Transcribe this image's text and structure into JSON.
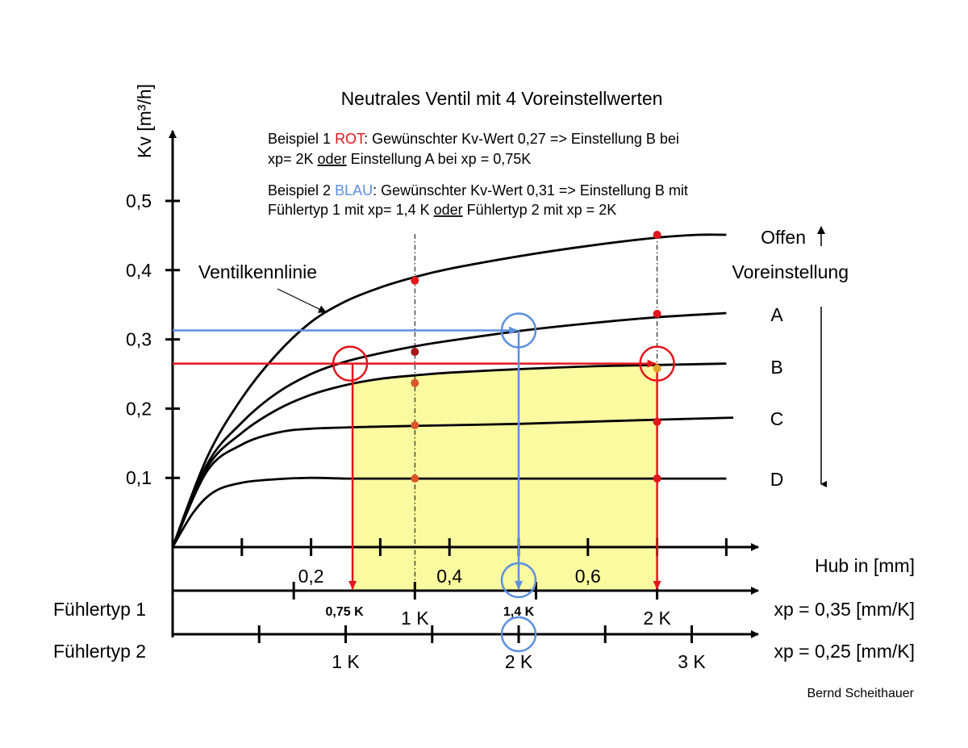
{
  "chart_data": {
    "type": "line",
    "title": "Neutrales Ventil mit 4 Voreinstellwerten",
    "ylabel": "Kv [m³/h]",
    "xlabel": "Hub in [mm]",
    "ylim": [
      0,
      0.5
    ],
    "xlim": [
      0,
      0.8
    ],
    "y_ticks": [
      0.1,
      0.2,
      0.3,
      0.4,
      0.5
    ],
    "y_tick_labels": [
      "0,1",
      "0,2",
      "0,3",
      "0,4",
      "0,5"
    ],
    "x_tick_labels": [
      {
        "x": 0.2,
        "label": "0,2"
      },
      {
        "x": 0.4,
        "label": "0,4"
      },
      {
        "x": 0.6,
        "label": "0,6"
      }
    ],
    "x_ticks": [
      0.1,
      0.2,
      0.3,
      0.4,
      0.5,
      0.6,
      0.7,
      0.8
    ],
    "series": [
      {
        "name": "Offen",
        "points": [
          [
            0,
            0
          ],
          [
            0.05,
            0.13
          ],
          [
            0.1,
            0.215
          ],
          [
            0.15,
            0.278
          ],
          [
            0.2,
            0.325
          ],
          [
            0.25,
            0.355
          ],
          [
            0.3,
            0.375
          ],
          [
            0.35,
            0.39
          ],
          [
            0.4,
            0.402
          ],
          [
            0.5,
            0.42
          ],
          [
            0.6,
            0.435
          ],
          [
            0.7,
            0.447
          ],
          [
            0.76,
            0.451
          ],
          [
            0.8,
            0.451
          ]
        ]
      },
      {
        "name": "A",
        "points": [
          [
            0,
            0
          ],
          [
            0.05,
            0.12
          ],
          [
            0.1,
            0.18
          ],
          [
            0.15,
            0.222
          ],
          [
            0.2,
            0.25
          ],
          [
            0.25,
            0.268
          ],
          [
            0.3,
            0.28
          ],
          [
            0.35,
            0.29
          ],
          [
            0.4,
            0.298
          ],
          [
            0.5,
            0.312
          ],
          [
            0.6,
            0.323
          ],
          [
            0.7,
            0.332
          ],
          [
            0.8,
            0.338
          ]
        ]
      },
      {
        "name": "B",
        "points": [
          [
            0,
            0
          ],
          [
            0.05,
            0.115
          ],
          [
            0.1,
            0.165
          ],
          [
            0.15,
            0.198
          ],
          [
            0.2,
            0.22
          ],
          [
            0.25,
            0.234
          ],
          [
            0.3,
            0.243
          ],
          [
            0.35,
            0.248
          ],
          [
            0.4,
            0.252
          ],
          [
            0.5,
            0.257
          ],
          [
            0.6,
            0.261
          ],
          [
            0.7,
            0.263
          ],
          [
            0.8,
            0.265
          ]
        ]
      },
      {
        "name": "C",
        "points": [
          [
            0,
            0
          ],
          [
            0.05,
            0.11
          ],
          [
            0.1,
            0.148
          ],
          [
            0.15,
            0.165
          ],
          [
            0.2,
            0.171
          ],
          [
            0.3,
            0.174
          ],
          [
            0.4,
            0.176
          ],
          [
            0.5,
            0.178
          ],
          [
            0.6,
            0.181
          ],
          [
            0.7,
            0.184
          ],
          [
            0.81,
            0.187
          ]
        ]
      },
      {
        "name": "D",
        "points": [
          [
            0,
            0
          ],
          [
            0.03,
            0.05
          ],
          [
            0.06,
            0.08
          ],
          [
            0.1,
            0.093
          ],
          [
            0.15,
            0.098
          ],
          [
            0.2,
            0.1
          ],
          [
            0.25,
            0.099
          ],
          [
            0.3,
            0.099
          ],
          [
            0.5,
            0.099
          ],
          [
            0.7,
            0.099
          ],
          [
            0.8,
            0.099
          ]
        ]
      }
    ],
    "marked_points": [
      {
        "x": 0.35,
        "y": 0.385,
        "color": "#e3161b"
      },
      {
        "x": 0.35,
        "y": 0.282,
        "color": "#a81818"
      },
      {
        "x": 0.35,
        "y": 0.237,
        "color": "#d9552a"
      },
      {
        "x": 0.35,
        "y": 0.176,
        "color": "#d9552a"
      },
      {
        "x": 0.35,
        "y": 0.099,
        "color": "#d9552a"
      },
      {
        "x": 0.7,
        "y": 0.451,
        "color": "#e3161b"
      },
      {
        "x": 0.7,
        "y": 0.337,
        "color": "#e3161b"
      },
      {
        "x": 0.7,
        "y": 0.258,
        "color": "#e3a02a"
      },
      {
        "x": 0.7,
        "y": 0.181,
        "color": "#e3161b"
      },
      {
        "x": 0.7,
        "y": 0.099,
        "color": "#e3161b"
      }
    ],
    "highlight_region": {
      "x0": 0.26,
      "x1": 0.7,
      "y0": 0,
      "y1": 0.265,
      "color": "#fafaa0"
    },
    "red_example": {
      "kv": 0.265,
      "x_left": 0.26,
      "x_right": 0.7
    },
    "blue_example": {
      "kv": 0.313,
      "x": 0.5
    },
    "annotations": {
      "example1": {
        "prefix": "Beispiel 1 ",
        "colored": "ROT",
        "line1_rest": ": Gewünschter Kv-Wert 0,27 => Einstellung B bei",
        "line2_a": "xp= 2K ",
        "line2_u": "oder",
        "line2_b": " Einstellung A bei xp = 0,75K",
        "color": "#e3161b"
      },
      "example2": {
        "prefix": "Beispiel 2 ",
        "colored": "BLAU",
        "line1_rest": ": Gewünschter Kv-Wert 0,31 => Einstellung B mit",
        "line2_a": "Fühlertyp 1 mit xp= 1,4 K ",
        "line2_u": "oder",
        "line2_b": " Fühlertyp 2 mit xp = 2K",
        "color": "#5b8fe0"
      },
      "curve_label": "Ventilkennlinie",
      "offen": "Offen",
      "voreinstellung": "Voreinstellung",
      "setting_labels": [
        "A",
        "B",
        "C",
        "D"
      ],
      "author": "Bernd Scheithauer"
    },
    "sensor_axes": [
      {
        "name": "Fühlertyp 1",
        "xp_label": "xp = 0,35 [mm/K]",
        "labels": [
          {
            "x": 0.26,
            "label": "0,75 K",
            "color": "#e3161b"
          },
          {
            "x": 0.35,
            "label": "1 K",
            "color": "#000000"
          },
          {
            "x": 0.5,
            "label": "1,4  K",
            "color": "#5b8fe0"
          },
          {
            "x": 0.7,
            "label": "2 K",
            "color": "#e3161b"
          }
        ],
        "ticks": [
          0.175,
          0.35,
          0.525,
          0.7
        ]
      },
      {
        "name": "Fühlertyp 2",
        "xp_label": "xp = 0,25 [mm/K]",
        "labels": [
          {
            "x": 0.25,
            "label": "1 K",
            "color": "#000000"
          },
          {
            "x": 0.5,
            "label": "2 K",
            "color": "#5b8fe0"
          },
          {
            "x": 0.75,
            "label": "3 K",
            "color": "#000000"
          }
        ],
        "ticks": [
          0.125,
          0.25,
          0.375,
          0.5,
          0.625,
          0.75
        ]
      }
    ]
  }
}
